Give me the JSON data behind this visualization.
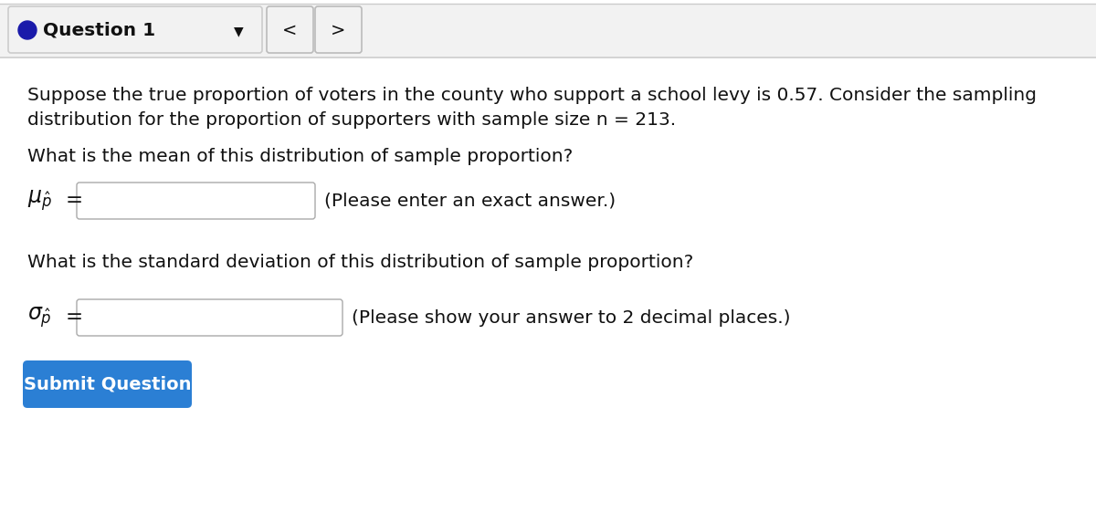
{
  "bg_color": "#ffffff",
  "header_bg": "#f2f2f2",
  "header_border": "#cccccc",
  "question_label": "Question 1",
  "circle_color": "#1a1aaa",
  "nav_button_bg": "#f2f2f2",
  "nav_button_border": "#bbbbbb",
  "paragraph_line1": "Suppose the true proportion of voters in the county who support a school levy is 0.57. Consider the sampling",
  "paragraph_line2": "distribution for the proportion of supporters with sample size n = 213.",
  "q1_text": "What is the mean of this distribution of sample proportion?",
  "q1_hint": "(Please enter an exact answer.)",
  "q2_text": "What is the standard deviation of this distribution of sample proportion?",
  "q2_hint": "(Please show your answer to 2 decimal places.)",
  "submit_text": "Submit Question",
  "submit_bg": "#2b7fd4",
  "submit_text_color": "#ffffff",
  "input_border": "#aaaaaa",
  "input_bg": "#ffffff",
  "text_color": "#111111",
  "font_size_main": 14.5,
  "font_size_header": 14.5,
  "font_size_symbol": 17,
  "font_size_submit": 14
}
